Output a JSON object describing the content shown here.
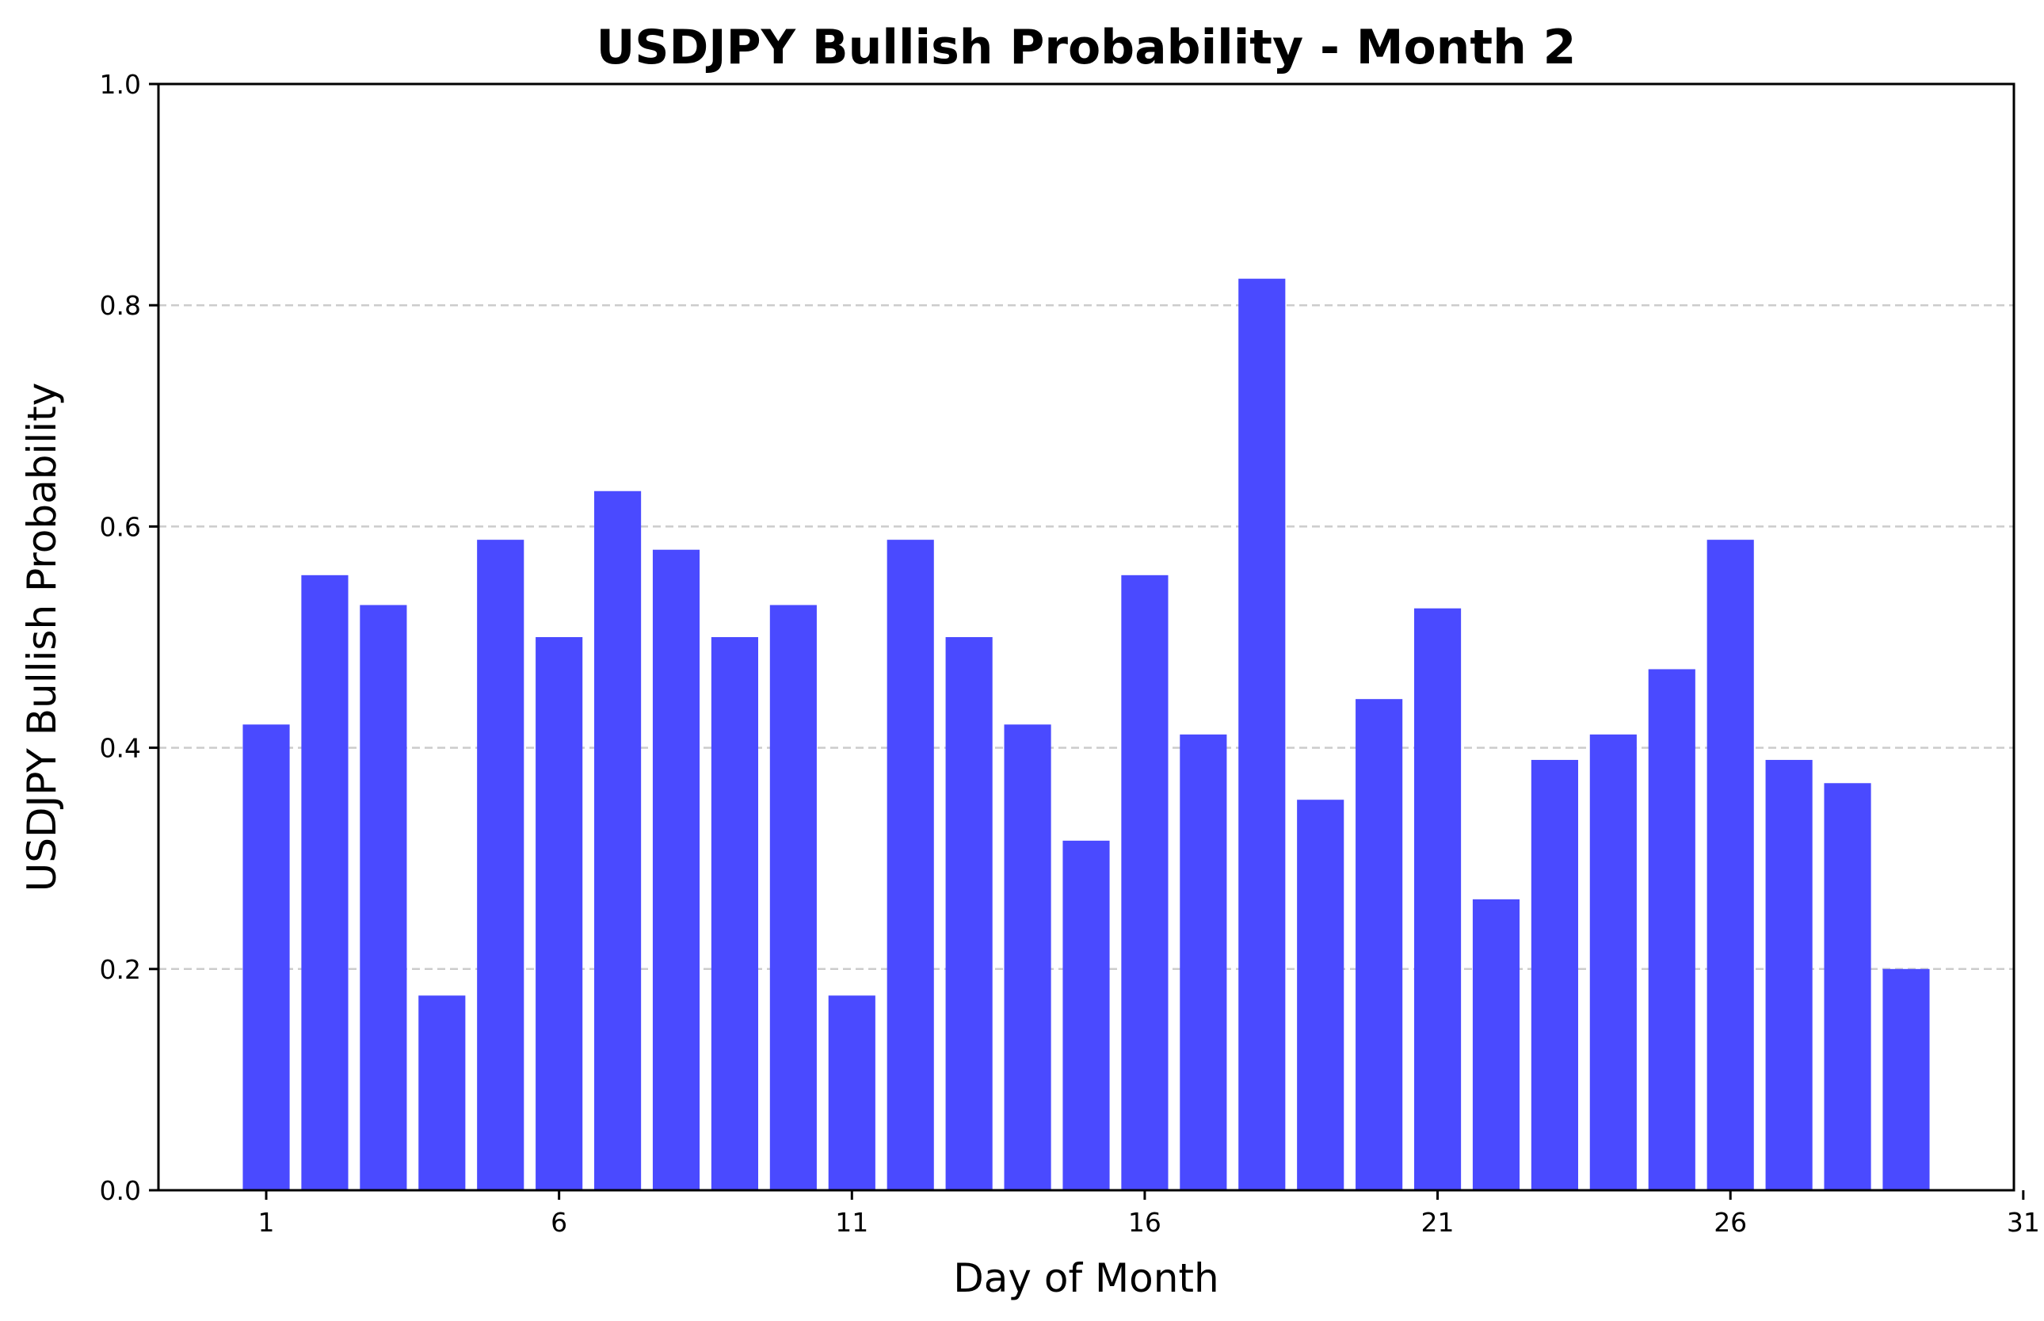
{
  "chart_data": {
    "type": "bar",
    "title": "USDJPY Bullish Probability - Month 2",
    "xlabel": "Day of Month",
    "ylabel": "USDJPY Bullish Probability",
    "x": [
      1,
      2,
      3,
      4,
      5,
      6,
      7,
      8,
      9,
      10,
      11,
      12,
      13,
      14,
      15,
      16,
      17,
      18,
      19,
      20,
      21,
      22,
      23,
      24,
      25,
      26,
      27,
      28,
      29
    ],
    "values": [
      0.421,
      0.556,
      0.529,
      0.176,
      0.588,
      0.5,
      0.632,
      0.579,
      0.5,
      0.529,
      0.176,
      0.588,
      0.5,
      0.421,
      0.316,
      0.556,
      0.412,
      0.824,
      0.353,
      0.444,
      0.526,
      0.263,
      0.389,
      0.412,
      0.471,
      0.588,
      0.389,
      0.368,
      0.2
    ],
    "xlim": [
      -0.84,
      30.84
    ],
    "ylim": [
      0.0,
      1.0
    ],
    "xticks": [
      "1",
      "6",
      "11",
      "16",
      "21",
      "26",
      "31"
    ],
    "yticks": [
      "0.0",
      "0.2",
      "0.4",
      "0.6",
      "0.8",
      "1.0"
    ],
    "bar_color": "#4a4aff",
    "grid": "horizontal dashed",
    "grid_color": "#cccccc"
  }
}
